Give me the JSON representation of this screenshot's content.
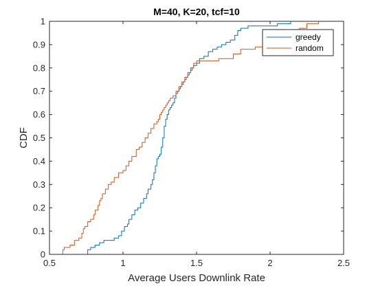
{
  "chart_data": {
    "type": "line",
    "subtype": "stairs-cdf",
    "title": "M=40, K=20, tcf=10",
    "xlabel": "Average Users Downlink Rate",
    "ylabel": "CDF",
    "xlim": [
      0.5,
      2.5
    ],
    "ylim": [
      0,
      1
    ],
    "xticks": [
      0.5,
      1,
      1.5,
      2,
      2.5
    ],
    "xtick_labels": [
      "0.5",
      "1",
      "1.5",
      "2",
      "2.5"
    ],
    "yticks": [
      0,
      0.1,
      0.2,
      0.3,
      0.4,
      0.5,
      0.6,
      0.7,
      0.8,
      0.9,
      1
    ],
    "ytick_labels": [
      "0",
      "0.1",
      "0.2",
      "0.3",
      "0.4",
      "0.5",
      "0.6",
      "0.7",
      "0.8",
      "0.9",
      "1"
    ],
    "grid": false,
    "legend_position": "top-right",
    "series": [
      {
        "name": "greedy",
        "color": "#0072BD",
        "x": [
          0.75,
          0.76,
          0.78,
          0.81,
          0.84,
          0.87,
          0.9,
          0.94,
          0.97,
          0.99,
          1.01,
          1.03,
          1.04,
          1.06,
          1.08,
          1.1,
          1.12,
          1.14,
          1.16,
          1.17,
          1.19,
          1.2,
          1.21,
          1.22,
          1.23,
          1.24,
          1.25,
          1.26,
          1.27,
          1.28,
          1.29,
          1.3,
          1.31,
          1.32,
          1.33,
          1.34,
          1.35,
          1.36,
          1.37,
          1.38,
          1.39,
          1.4,
          1.41,
          1.42,
          1.43,
          1.44,
          1.45,
          1.46,
          1.47,
          1.48,
          1.5,
          1.52,
          1.55,
          1.58,
          1.61,
          1.64,
          1.67,
          1.7,
          1.73,
          1.76,
          1.78,
          1.8,
          1.82,
          1.85,
          1.9,
          1.95,
          2.0,
          2.05,
          2.08,
          2.1,
          2.12,
          2.14
        ],
        "y": [
          0.0,
          0.02,
          0.03,
          0.04,
          0.05,
          0.06,
          0.06,
          0.07,
          0.08,
          0.1,
          0.12,
          0.13,
          0.15,
          0.17,
          0.19,
          0.2,
          0.22,
          0.24,
          0.26,
          0.28,
          0.3,
          0.32,
          0.35,
          0.38,
          0.41,
          0.42,
          0.43,
          0.46,
          0.5,
          0.55,
          0.58,
          0.6,
          0.62,
          0.63,
          0.64,
          0.65,
          0.67,
          0.69,
          0.7,
          0.71,
          0.72,
          0.73,
          0.74,
          0.75,
          0.76,
          0.77,
          0.78,
          0.79,
          0.8,
          0.81,
          0.82,
          0.84,
          0.85,
          0.87,
          0.88,
          0.89,
          0.9,
          0.91,
          0.92,
          0.94,
          0.96,
          0.97,
          0.97,
          0.98,
          0.98,
          0.98,
          0.98,
          0.99,
          0.99,
          0.99,
          0.99,
          1.0
        ]
      },
      {
        "name": "random",
        "color": "#D95319",
        "x": [
          0.58,
          0.59,
          0.6,
          0.64,
          0.67,
          0.7,
          0.72,
          0.73,
          0.74,
          0.76,
          0.78,
          0.8,
          0.81,
          0.83,
          0.84,
          0.85,
          0.86,
          0.88,
          0.9,
          0.92,
          0.94,
          0.97,
          1.0,
          1.02,
          1.04,
          1.06,
          1.09,
          1.11,
          1.13,
          1.15,
          1.17,
          1.19,
          1.21,
          1.23,
          1.24,
          1.25,
          1.26,
          1.27,
          1.28,
          1.29,
          1.3,
          1.31,
          1.32,
          1.34,
          1.36,
          1.38,
          1.4,
          1.42,
          1.44,
          1.46,
          1.48,
          1.5,
          1.52,
          1.55,
          1.6,
          1.65,
          1.7,
          1.75,
          1.8,
          1.85,
          1.9,
          1.95,
          2.0,
          2.05,
          2.1,
          2.15,
          2.2,
          2.25,
          2.33
        ],
        "y": [
          0.0,
          0.02,
          0.03,
          0.04,
          0.06,
          0.07,
          0.09,
          0.11,
          0.12,
          0.14,
          0.15,
          0.17,
          0.19,
          0.21,
          0.23,
          0.24,
          0.26,
          0.28,
          0.3,
          0.31,
          0.33,
          0.35,
          0.36,
          0.38,
          0.4,
          0.42,
          0.45,
          0.46,
          0.48,
          0.5,
          0.52,
          0.54,
          0.56,
          0.57,
          0.58,
          0.6,
          0.61,
          0.62,
          0.63,
          0.64,
          0.65,
          0.66,
          0.67,
          0.68,
          0.7,
          0.72,
          0.74,
          0.76,
          0.78,
          0.8,
          0.82,
          0.83,
          0.83,
          0.83,
          0.83,
          0.84,
          0.84,
          0.86,
          0.88,
          0.88,
          0.89,
          0.9,
          0.92,
          0.93,
          0.94,
          0.96,
          0.97,
          0.99,
          1.0
        ]
      }
    ]
  }
}
